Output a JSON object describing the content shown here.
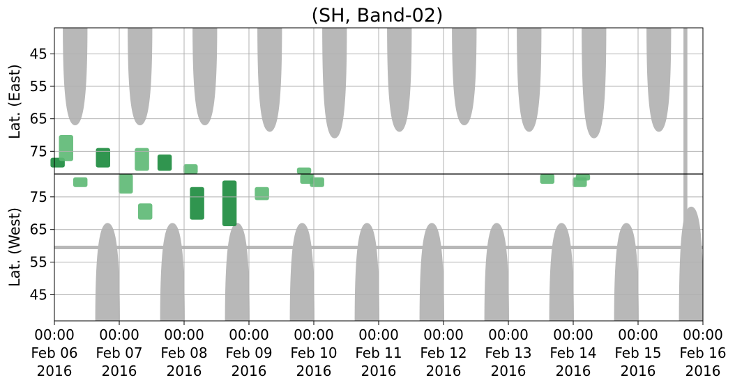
{
  "chart_data": {
    "type": "heatmap",
    "title": "(SH, Band-02)",
    "ylabel_east": "Lat. (East)",
    "ylabel_west": "Lat. (West)",
    "x_start": "2016-02-06 00:00",
    "x_end": "2016-02-16 00:00",
    "x_ticks": [
      {
        "time": "00:00",
        "date": "Feb 06",
        "year": "2016"
      },
      {
        "time": "00:00",
        "date": "Feb 07",
        "year": "2016"
      },
      {
        "time": "00:00",
        "date": "Feb 08",
        "year": "2016"
      },
      {
        "time": "00:00",
        "date": "Feb 09",
        "year": "2016"
      },
      {
        "time": "00:00",
        "date": "Feb 10",
        "year": "2016"
      },
      {
        "time": "00:00",
        "date": "Feb 11",
        "year": "2016"
      },
      {
        "time": "00:00",
        "date": "Feb 12",
        "year": "2016"
      },
      {
        "time": "00:00",
        "date": "Feb 13",
        "year": "2016"
      },
      {
        "time": "00:00",
        "date": "Feb 14",
        "year": "2016"
      },
      {
        "time": "00:00",
        "date": "Feb 15",
        "year": "2016"
      },
      {
        "time": "00:00",
        "date": "Feb 16",
        "year": "2016"
      }
    ],
    "east_panel": {
      "lat_range": [
        37,
        82
      ],
      "ticks": [
        45,
        55,
        65,
        75
      ]
    },
    "west_panel": {
      "lat_range": [
        37,
        82
      ],
      "ticks": [
        75,
        65,
        55,
        45
      ]
    },
    "grid": true,
    "colors": {
      "no_data": "#b8b8b8",
      "detection_light": "#5cb873",
      "detection_dark": "#1a8a3c",
      "grid": "#b0b0b0",
      "axis": "#000000"
    },
    "no_data_daily_pattern": {
      "east_center_day_offsets": [
        0.32,
        1.32,
        2.32,
        3.32,
        4.32,
        5.32,
        6.32,
        7.32,
        8.32,
        9.32
      ],
      "east_min_lat": [
        67,
        67,
        67,
        69,
        71,
        69,
        67,
        69,
        71,
        69
      ],
      "west_center_day_offsets": [
        0.82,
        1.82,
        2.82,
        3.82,
        4.82,
        5.82,
        6.82,
        7.82,
        8.82,
        9.82
      ],
      "west_max_lat": [
        67,
        67,
        67,
        67,
        67,
        67,
        67,
        67,
        67,
        72
      ],
      "west_band_lat": 59.5
    },
    "detections": [
      {
        "panel": "east",
        "day": 0.05,
        "lat_min": 77,
        "lat_max": 80,
        "intensity": "dark"
      },
      {
        "panel": "east",
        "day": 0.18,
        "lat_min": 70,
        "lat_max": 78,
        "intensity": "light"
      },
      {
        "panel": "east",
        "day": 0.75,
        "lat_min": 74,
        "lat_max": 80,
        "intensity": "dark"
      },
      {
        "panel": "east",
        "day": 1.35,
        "lat_min": 74,
        "lat_max": 81,
        "intensity": "light"
      },
      {
        "panel": "east",
        "day": 1.7,
        "lat_min": 76,
        "lat_max": 81,
        "intensity": "dark"
      },
      {
        "panel": "east",
        "day": 2.1,
        "lat_min": 79,
        "lat_max": 82,
        "intensity": "light"
      },
      {
        "panel": "east",
        "day": 3.85,
        "lat_min": 80,
        "lat_max": 82,
        "intensity": "light"
      },
      {
        "panel": "west",
        "day": 0.4,
        "lat_min": 78,
        "lat_max": 81,
        "intensity": "light"
      },
      {
        "panel": "west",
        "day": 1.1,
        "lat_min": 76,
        "lat_max": 82,
        "intensity": "light"
      },
      {
        "panel": "west",
        "day": 1.4,
        "lat_min": 68,
        "lat_max": 73,
        "intensity": "light"
      },
      {
        "panel": "west",
        "day": 2.2,
        "lat_min": 68,
        "lat_max": 78,
        "intensity": "dark"
      },
      {
        "panel": "west",
        "day": 2.7,
        "lat_min": 66,
        "lat_max": 80,
        "intensity": "dark"
      },
      {
        "panel": "west",
        "day": 3.2,
        "lat_min": 74,
        "lat_max": 78,
        "intensity": "light"
      },
      {
        "panel": "west",
        "day": 3.9,
        "lat_min": 79,
        "lat_max": 82,
        "intensity": "light"
      },
      {
        "panel": "west",
        "day": 4.05,
        "lat_min": 78,
        "lat_max": 81,
        "intensity": "light"
      },
      {
        "panel": "west",
        "day": 7.6,
        "lat_min": 79,
        "lat_max": 82,
        "intensity": "light"
      },
      {
        "panel": "west",
        "day": 8.1,
        "lat_min": 78,
        "lat_max": 81,
        "intensity": "light"
      },
      {
        "panel": "west",
        "day": 8.15,
        "lat_min": 80,
        "lat_max": 82,
        "intensity": "light"
      }
    ]
  }
}
